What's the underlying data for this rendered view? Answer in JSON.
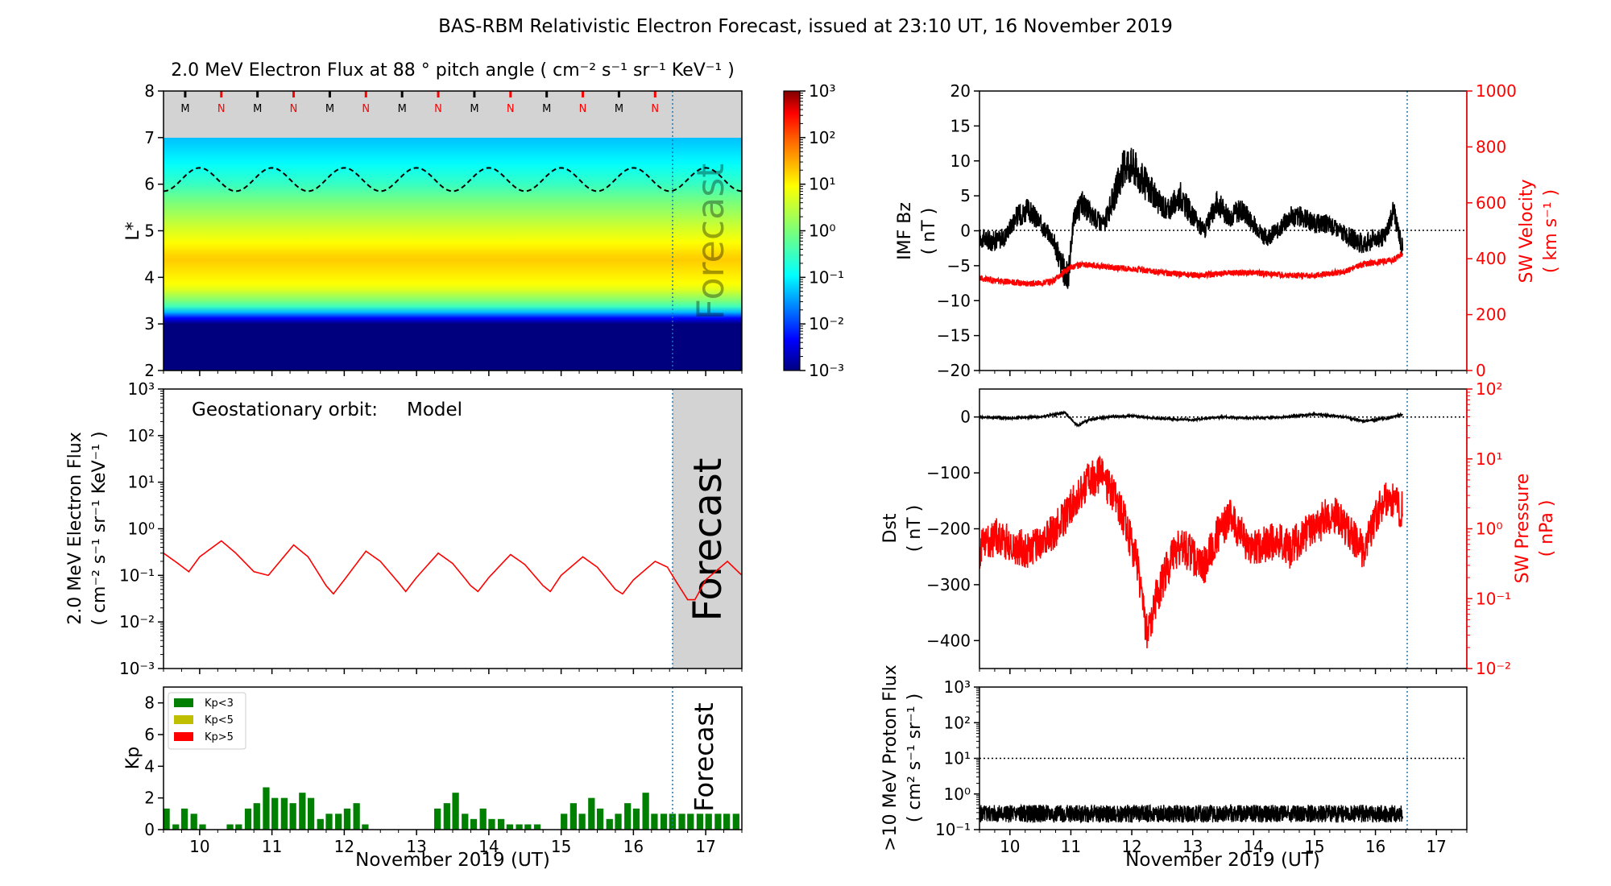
{
  "title": "BAS-RBM Relativistic Electron Forecast, issued at 23:10 UT, 16 November 2019",
  "colors": {
    "model": "#ff0000",
    "sw": "#ff0000",
    "kp_low": "#008000",
    "kp_mid": "#bfbf00",
    "kp_high": "#ff0000",
    "forecast_line": "#1f77b4",
    "forecast_bg": "#d3d3d3"
  },
  "time_axis": {
    "xlim": [
      9.5,
      17.5
    ],
    "ticks": [
      "10",
      "11",
      "12",
      "13",
      "14",
      "15",
      "16",
      "17"
    ],
    "label": "November 2019 (UT)",
    "forecast_start": 16.47
  },
  "forecast_label": "Forecast",
  "chart_data": [
    {
      "id": "lstar_flux",
      "type": "heatmap",
      "title": "2.0 MeV Electron Flux at 88 ° pitch angle ( cm⁻² s⁻¹ sr⁻¹ KeV⁻¹ )",
      "ylabel": "L*",
      "ylim": [
        2,
        8
      ],
      "yticks": [
        "2",
        "3",
        "4",
        "5",
        "6",
        "7",
        "8"
      ],
      "colorbar": {
        "scale": "log",
        "range": [
          0.001,
          1000
        ],
        "ticks": [
          "10⁻³",
          "10⁻²",
          "10⁻¹",
          "10⁰",
          "10¹",
          "10²",
          "10³"
        ]
      },
      "mn_markers": [
        "M",
        "N",
        "M",
        "N",
        "M",
        "N",
        "M",
        "N",
        "M",
        "N",
        "M",
        "N",
        "M",
        "N"
      ],
      "flux_profile": [
        [
          2.0,
          0.001
        ],
        [
          3.05,
          0.001
        ],
        [
          3.2,
          0.02
        ],
        [
          3.4,
          0.5
        ],
        [
          3.8,
          8
        ],
        [
          4.4,
          20
        ],
        [
          5.0,
          5
        ],
        [
          5.6,
          1
        ],
        [
          6.0,
          0.3
        ],
        [
          6.5,
          0.1
        ],
        [
          7.0,
          0.05
        ]
      ],
      "geo_orbit_lstar": {
        "mean": 6.1,
        "amplitude": 0.25,
        "period_days": 1.0
      }
    },
    {
      "id": "geo_flux",
      "type": "line",
      "annotation": "Geostationary orbit:",
      "annotation_series": "Model",
      "ylabel": "2.0 MeV Electron Flux ( cm⁻² s⁻¹ sr⁻¹ KeV⁻¹ )",
      "yscale": "log",
      "ylim": [
        0.001,
        1000
      ],
      "yticks": [
        "10⁻³",
        "10⁻²",
        "10⁻¹",
        "10⁰",
        "10¹",
        "10²",
        "10³"
      ],
      "series": [
        {
          "name": "Model",
          "x": [
            9.5,
            9.7,
            9.85,
            10.0,
            10.3,
            10.5,
            10.75,
            10.95,
            11.3,
            11.5,
            11.75,
            11.85,
            12.0,
            12.3,
            12.5,
            12.75,
            12.85,
            13.0,
            13.3,
            13.5,
            13.75,
            13.85,
            14.0,
            14.3,
            14.5,
            14.75,
            14.85,
            15.0,
            15.3,
            15.5,
            15.75,
            15.85,
            16.0,
            16.3,
            16.47,
            16.6,
            16.75,
            16.85,
            17.0,
            17.3,
            17.5
          ],
          "y": [
            0.3,
            0.18,
            0.12,
            0.25,
            0.55,
            0.3,
            0.12,
            0.1,
            0.45,
            0.25,
            0.06,
            0.04,
            0.08,
            0.33,
            0.2,
            0.07,
            0.045,
            0.09,
            0.3,
            0.18,
            0.06,
            0.045,
            0.09,
            0.28,
            0.17,
            0.06,
            0.045,
            0.1,
            0.25,
            0.15,
            0.05,
            0.04,
            0.08,
            0.2,
            0.15,
            0.07,
            0.03,
            0.03,
            0.08,
            0.2,
            0.1
          ]
        }
      ]
    },
    {
      "id": "kp",
      "type": "bar",
      "ylabel": "Kp",
      "ylim": [
        0,
        9
      ],
      "yticks": [
        "0",
        "2",
        "4",
        "6",
        "8"
      ],
      "legend": [
        "Kp<3",
        "Kp<5",
        "Kp>5"
      ],
      "bar_width_days": 0.1,
      "x": [
        9.54,
        9.67,
        9.79,
        9.92,
        10.04,
        10.17,
        10.29,
        10.42,
        10.54,
        10.67,
        10.79,
        10.92,
        11.04,
        11.17,
        11.29,
        11.42,
        11.54,
        11.67,
        11.79,
        11.92,
        12.04,
        12.17,
        12.29,
        12.42,
        12.54,
        12.67,
        12.79,
        12.92,
        13.04,
        13.17,
        13.29,
        13.42,
        13.54,
        13.67,
        13.79,
        13.92,
        14.04,
        14.17,
        14.29,
        14.42,
        14.54,
        14.67,
        14.79,
        14.92,
        15.04,
        15.17,
        15.29,
        15.42,
        15.54,
        15.67,
        15.79,
        15.92,
        16.04,
        16.17,
        16.29,
        16.42,
        16.54,
        16.67,
        16.79,
        16.92,
        17.04,
        17.17,
        17.29,
        17.42
      ],
      "values": [
        1.33,
        0.33,
        1.33,
        1.0,
        0.33,
        0,
        0,
        0.33,
        0.33,
        1.33,
        1.67,
        2.67,
        2.0,
        2.0,
        1.67,
        2.33,
        2.0,
        0.67,
        1.0,
        1.0,
        1.33,
        1.67,
        0.33,
        0,
        0,
        0,
        0,
        0,
        0,
        0,
        1.33,
        1.67,
        2.33,
        1.0,
        0.67,
        1.33,
        0.67,
        0.67,
        0.33,
        0.33,
        0.33,
        0.33,
        0,
        0,
        1.0,
        1.67,
        1.0,
        2.0,
        1.33,
        0.67,
        1.0,
        1.67,
        1.33,
        2.33,
        1.0,
        1.0,
        1.0,
        1.0,
        1.0,
        1.0,
        1.0,
        1.0,
        1.0,
        1.0
      ]
    },
    {
      "id": "imf_sw",
      "type": "line",
      "ylabel": "IMF Bz ( nT )",
      "ylim": [
        -20,
        20
      ],
      "yticks": [
        "−20",
        "−15",
        "−10",
        "−5",
        "0",
        "5",
        "10",
        "15",
        "20"
      ],
      "ylabel_right": "SW Velocity ( km s⁻¹ )",
      "ylim_right": [
        0,
        1000
      ],
      "yticks_right": [
        "0",
        "200",
        "400",
        "600",
        "800",
        "1000"
      ],
      "series": [
        {
          "name": "IMF Bz",
          "x": [
            9.5,
            9.7,
            9.9,
            10.1,
            10.3,
            10.5,
            10.7,
            10.85,
            10.95,
            11.05,
            11.2,
            11.35,
            11.55,
            11.75,
            11.9,
            12.05,
            12.2,
            12.45,
            12.6,
            12.8,
            13.0,
            13.2,
            13.4,
            13.6,
            13.8,
            14.0,
            14.2,
            14.4,
            14.6,
            14.8,
            15.0,
            15.2,
            15.4,
            15.6,
            15.8,
            16.0,
            16.15,
            16.3,
            16.45
          ],
          "y": [
            -1,
            -1.5,
            -1,
            2,
            3,
            1,
            -1,
            -5,
            -7,
            2,
            4,
            2,
            1,
            6,
            10,
            9,
            7,
            4,
            3,
            5,
            2,
            0,
            4,
            2,
            3,
            1,
            -1,
            0,
            2,
            2,
            1,
            1,
            0,
            -1,
            -2,
            -1,
            -1,
            3,
            -3
          ]
        },
        {
          "name": "SW Velocity",
          "x": [
            9.5,
            9.8,
            10.1,
            10.4,
            10.7,
            11.0,
            11.3,
            11.6,
            11.9,
            12.2,
            12.5,
            12.8,
            13.1,
            13.4,
            13.7,
            14.0,
            14.3,
            14.6,
            14.9,
            15.2,
            15.5,
            15.8,
            16.1,
            16.3,
            16.45
          ],
          "y": [
            330,
            320,
            315,
            310,
            320,
            370,
            380,
            370,
            365,
            360,
            350,
            345,
            340,
            345,
            350,
            350,
            345,
            340,
            340,
            345,
            355,
            380,
            390,
            395,
            420
          ]
        }
      ]
    },
    {
      "id": "dst_pressure",
      "type": "line",
      "ylabel": "Dst ( nT )",
      "ylim": [
        -450,
        50
      ],
      "yticks": [
        "0",
        "−100",
        "−200",
        "−300",
        "−400"
      ],
      "ylabel_right": "SW Pressure ( nPa )",
      "yscale_right": "log",
      "ylim_right": [
        0.01,
        100
      ],
      "yticks_right": [
        "10⁻²",
        "10⁻¹",
        "10⁰",
        "10¹",
        "10²"
      ],
      "series": [
        {
          "name": "Dst",
          "x": [
            9.5,
            10.0,
            10.5,
            10.9,
            11.1,
            11.3,
            11.6,
            12.0,
            12.5,
            13.0,
            13.5,
            14.0,
            14.5,
            15.0,
            15.5,
            15.8,
            16.2,
            16.45
          ],
          "y": [
            0,
            -2,
            0,
            8,
            -15,
            -5,
            0,
            2,
            -3,
            -5,
            0,
            -2,
            0,
            5,
            0,
            -8,
            -2,
            5
          ]
        },
        {
          "name": "SW Pressure",
          "x": [
            9.5,
            9.8,
            10.0,
            10.3,
            10.6,
            10.9,
            11.1,
            11.3,
            11.5,
            11.7,
            11.9,
            12.1,
            12.25,
            12.4,
            12.6,
            12.8,
            13.0,
            13.2,
            13.4,
            13.6,
            13.8,
            14.0,
            14.2,
            14.4,
            14.6,
            14.8,
            15.0,
            15.2,
            15.4,
            15.6,
            15.8,
            16.0,
            16.2,
            16.45
          ],
          "y": [
            0.5,
            0.8,
            0.6,
            0.5,
            0.7,
            1.5,
            3,
            5,
            6,
            3,
            1.2,
            0.3,
            0.03,
            0.1,
            0.3,
            0.6,
            0.4,
            0.3,
            0.8,
            1.5,
            0.8,
            0.5,
            0.6,
            0.7,
            0.5,
            0.8,
            1.0,
            1.5,
            1.5,
            0.8,
            0.5,
            1.5,
            3,
            1.8
          ]
        }
      ]
    },
    {
      "id": "proton_flux",
      "type": "line",
      "ylabel": ">10 MeV Proton Flux ( cm² s⁻¹ sr⁻¹ )",
      "yscale": "log",
      "ylim": [
        0.1,
        1000
      ],
      "yticks": [
        "10⁻¹",
        "10⁰",
        "10¹",
        "10²",
        "10³"
      ],
      "threshold": 10,
      "series": [
        {
          "name": "Proton Flux",
          "x_range": [
            9.5,
            16.45
          ],
          "baseline": 0.28
        }
      ]
    }
  ]
}
